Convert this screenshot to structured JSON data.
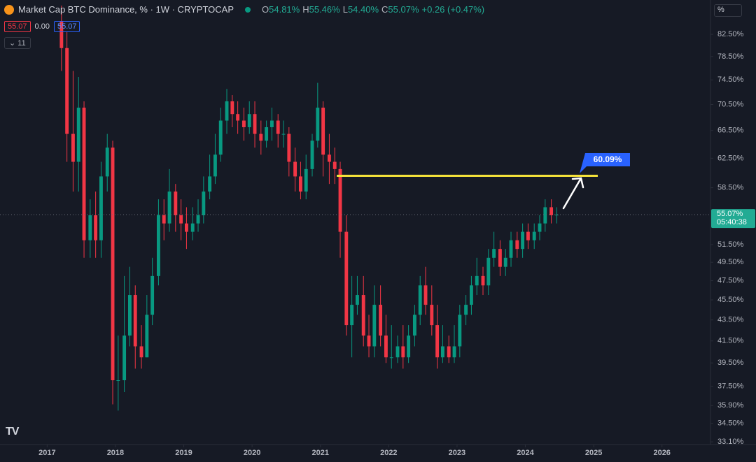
{
  "chart_data": {
    "type": "candlestick",
    "title": "Market Cap BTC Dominance, % · 1W · CRYPTOCAP",
    "ohlc_legend": [
      {
        "key": "O",
        "value": "54.81%"
      },
      {
        "key": "H",
        "value": "55.46%"
      },
      {
        "key": "L",
        "value": "54.40%"
      },
      {
        "key": "C",
        "value": "55.07%"
      },
      {
        "key": "",
        "value": "+0.26 (+0.47%)"
      }
    ],
    "sell_box": "55.07",
    "spread": "0.00",
    "buy_box": "55.07",
    "indicator_count": "11",
    "scale_button": "%",
    "log_scale": true,
    "grid": false,
    "up_color": "#089981",
    "down_color": "#f23645",
    "xlim": [
      2016.31,
      2026.71
    ],
    "xticks": [
      2017,
      2018,
      2019,
      2020,
      2021,
      2022,
      2023,
      2024,
      2025,
      2026
    ],
    "ylim": [
      32.9,
      89.1
    ],
    "yticks": [
      {
        "value": 33.1,
        "label": "33.10%"
      },
      {
        "value": 34.5,
        "label": "34.50%"
      },
      {
        "value": 35.9,
        "label": "35.90%"
      },
      {
        "value": 37.5,
        "label": "37.50%"
      },
      {
        "value": 39.5,
        "label": "39.50%"
      },
      {
        "value": 41.5,
        "label": "41.50%"
      },
      {
        "value": 43.5,
        "label": "43.50%"
      },
      {
        "value": 45.5,
        "label": "45.50%"
      },
      {
        "value": 47.5,
        "label": "47.50%"
      },
      {
        "value": 49.5,
        "label": "49.50%"
      },
      {
        "value": 51.5,
        "label": "51.50%"
      },
      {
        "value": 58.5,
        "label": "58.50%"
      },
      {
        "value": 62.5,
        "label": "62.50%"
      },
      {
        "value": 66.5,
        "label": "66.50%"
      },
      {
        "value": 70.5,
        "label": "70.50%"
      },
      {
        "value": 74.5,
        "label": "74.50%"
      },
      {
        "value": 78.5,
        "label": "78.50%"
      },
      {
        "value": 82.5,
        "label": "82.50%"
      }
    ],
    "x": [
      2017.21,
      2017.29,
      2017.38,
      2017.46,
      2017.54,
      2017.63,
      2017.71,
      2017.79,
      2017.88,
      2017.96,
      2018.04,
      2018.13,
      2018.21,
      2018.29,
      2018.38,
      2018.46,
      2018.54,
      2018.63,
      2018.71,
      2018.79,
      2018.88,
      2018.96,
      2019.04,
      2019.13,
      2019.21,
      2019.29,
      2019.38,
      2019.46,
      2019.54,
      2019.63,
      2019.71,
      2019.79,
      2019.88,
      2019.96,
      2020.04,
      2020.13,
      2020.21,
      2020.29,
      2020.38,
      2020.46,
      2020.54,
      2020.63,
      2020.71,
      2020.79,
      2020.88,
      2020.96,
      2021.04,
      2021.13,
      2021.21,
      2021.29,
      2021.38,
      2021.46,
      2021.54,
      2021.63,
      2021.71,
      2021.79,
      2021.88,
      2021.96,
      2022.04,
      2022.13,
      2022.21,
      2022.29,
      2022.38,
      2022.46,
      2022.54,
      2022.63,
      2022.71,
      2022.79,
      2022.88,
      2022.96,
      2023.04,
      2023.13,
      2023.21,
      2023.29,
      2023.38,
      2023.46,
      2023.54,
      2023.63,
      2023.71,
      2023.79,
      2023.88,
      2023.96,
      2024.04,
      2024.13,
      2024.21,
      2024.29,
      2024.38,
      2024.46
    ],
    "open": [
      85,
      80,
      66,
      62,
      70,
      52,
      55,
      52,
      60,
      64,
      38,
      38,
      42,
      46,
      41,
      40,
      44,
      48,
      55,
      54,
      58,
      55,
      54,
      53,
      54,
      55,
      58,
      60,
      63,
      68,
      71,
      69,
      68,
      67,
      69,
      66,
      65,
      67,
      68,
      66,
      66,
      62,
      60,
      58,
      61,
      65,
      70,
      63,
      62,
      61,
      53,
      43,
      45,
      46,
      42,
      41,
      45,
      42,
      40,
      40,
      41,
      40,
      42,
      44,
      47,
      45,
      43,
      40,
      41,
      40,
      41,
      44,
      45,
      47,
      48,
      47,
      50,
      51,
      49,
      50,
      52,
      51,
      53,
      52,
      53,
      54,
      56,
      55
    ],
    "high": [
      88,
      83,
      76,
      75,
      71,
      57,
      58,
      62,
      66,
      65,
      42,
      48,
      49,
      47,
      43,
      46,
      50,
      57,
      57,
      61,
      59,
      57,
      56,
      56,
      57,
      60,
      63,
      66,
      70,
      73,
      72,
      71,
      70,
      71,
      71,
      68,
      68,
      70,
      69,
      68,
      67,
      64,
      62,
      63,
      66,
      74,
      71,
      66,
      64,
      62,
      55,
      48,
      48,
      48,
      44,
      47,
      47,
      44,
      43,
      42,
      43,
      43,
      45,
      48,
      49,
      47,
      45,
      43,
      42,
      43,
      45,
      46,
      48,
      50,
      49,
      51,
      53,
      52,
      51,
      53,
      53,
      54,
      54,
      54,
      55,
      57,
      57,
      56
    ],
    "low": [
      76,
      62,
      58,
      58,
      50,
      50,
      50,
      50,
      58,
      36,
      35.5,
      37,
      41,
      39,
      39,
      40,
      43,
      47,
      52,
      53,
      53,
      52,
      51,
      52,
      53,
      54,
      57,
      59,
      62,
      66,
      67,
      66,
      65,
      66,
      64,
      63,
      64,
      65,
      64,
      64,
      60,
      58,
      57,
      57,
      60,
      64,
      60,
      59,
      59,
      50,
      42,
      40,
      44,
      41,
      40,
      40,
      41,
      39.5,
      39,
      39.5,
      39,
      39.5,
      41,
      43,
      44,
      42,
      39,
      39.5,
      39.5,
      39.5,
      40,
      43,
      44,
      46,
      46,
      46,
      49,
      48,
      48,
      49,
      50,
      50,
      51,
      51,
      52,
      53,
      54,
      54
    ],
    "close": [
      80,
      66,
      62,
      70,
      52,
      55,
      52,
      60,
      64,
      38,
      38,
      42,
      46,
      41,
      40,
      44,
      48,
      55,
      54,
      58,
      55,
      54,
      53,
      54,
      55,
      58,
      60,
      63,
      68,
      71,
      69,
      68,
      67,
      69,
      66,
      65,
      67,
      68,
      66,
      66,
      62,
      60,
      58,
      61,
      65,
      70,
      63,
      62,
      61,
      53,
      43,
      45,
      46,
      42,
      41,
      45,
      42,
      40,
      40,
      41,
      40,
      42,
      44,
      47,
      45,
      43,
      40,
      41,
      40,
      41,
      44,
      45,
      47,
      48,
      47,
      50,
      51,
      49,
      50,
      52,
      51,
      53,
      52,
      53,
      54,
      56,
      55,
      55.07
    ],
    "last_value": 55.07,
    "last_label": "55.07%",
    "countdown": "05:40:38",
    "target": {
      "value": 60.09,
      "label": "60.09%",
      "x": [
        2021.24,
        2025.06
      ],
      "color": "#f5e23a"
    }
  }
}
